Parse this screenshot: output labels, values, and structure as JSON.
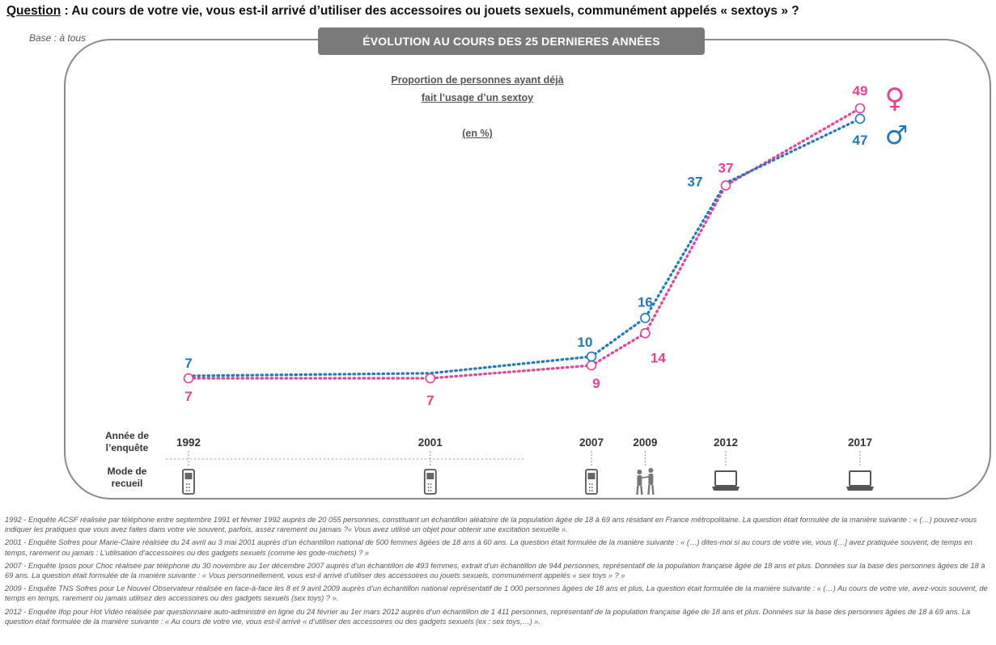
{
  "header": {
    "question_label": "Question",
    "question_text": " : Au cours de votre vie, vous est-il arrivé d’utiliser des accessoires ou jouets sexuels, communément appelés « sextoys » ?",
    "base": "Base : à tous",
    "banner": "ÉVOLUTION AU COURS DES 25 DERNIERES ANNÉES"
  },
  "chart_data": {
    "type": "line",
    "title_lines": [
      "Proportion de personnes ayant déjà",
      "fait l’usage d’un sextoy",
      "(en %)"
    ],
    "x": [
      1992,
      2001,
      2007,
      2009,
      2012,
      2017
    ],
    "series": [
      {
        "name": "Femmes",
        "symbol": "♀",
        "color": "#ec3e97",
        "values": [
          7,
          7,
          9,
          14,
          37,
          49
        ]
      },
      {
        "name": "Hommes",
        "symbol": "♂",
        "color": "#1f78c1",
        "values": [
          7,
          null,
          10,
          16,
          37,
          47
        ]
      }
    ],
    "line_style": "dotted",
    "grid": false
  },
  "axis": {
    "year_row_label": [
      "Année de",
      "l’enquête"
    ],
    "mode_row_label": [
      "Mode de",
      "recueil"
    ],
    "years": [
      "1992",
      "2001",
      "2007",
      "2009",
      "2012",
      "2017"
    ],
    "modes": [
      "phone-icon",
      "phone-icon",
      "phone-icon",
      "face-to-face-icon",
      "laptop-icon",
      "laptop-icon"
    ]
  },
  "footnotes": [
    "1992 - Enquête ACSF réalisée par téléphone entre septembre 1991 et février 1992 auprès de 20 055 personnes, constituant un échantillon aléatoire de la population âgée de 18 à 69 ans résidant en France métropolitaine. La question était formulée de la manière suivante : « (…) pouvez-vous indiquer les pratiques que vous avez faites dans votre vie souvent, parfois, assez rarement ou jamais ?« Vous avez utilisé un objet pour obtenir une excitation sexuelle ».",
    "2001 - Enquête Sofres pour Marie-Claire réalisée du 24 avril au 3 mai 2001 auprès d’un échantillon national de 500 femmes âgées de 18 ans à 60 ans. La question était formulée de la manière suivante : « (…) dites-moi si au cours de votre vie, vous l[…] avez pratiquée souvent, de temps en temps, rarement ou jamais : L’utilisation d’accessoires ou des gadgets sexuels (comme les gode-michets) ? »",
    "2007 - Enquête Ipsos pour Choc réalisée par téléphone du 30 novembre au 1er décembre 2007 auprès d’un échantillon de 493 femmes, extrait d’un échantillon de 944 personnes, représentatif de la population française âgée de 18 ans et plus. Données sur la base des personnes âgées de 18 à 69 ans. La question était formulée de la manière suivante : « Vous personnellement, vous est-il arrivé d’utiliser des accessoires ou jouets sexuels, communément appelés « sex toys » ? »",
    "2009 - Enquête TNS Sofres pour Le Nouvel Observateur réalisée en face-à-face les 8 et 9 avril 2009 auprès d’un échantillon national représentatif de 1 000 personnes âgées de 18 ans et plus. La question était formulée de la manière suivante : « (…) Au cours de votre vie, avez-vous souvent, de temps en temps, rarement ou jamais utilisez des accessoires ou des gadgets sexuels (sex toys) ? ».",
    "2012 - Enquête Ifop pour Hot Vidéo réalisée par questionnaire auto-administré en ligne du 24 février au 1er mars 2012 auprès d’un échantillon de 1 411 personnes, représentatif de la population française âgée de 18 ans et plus. Données sur la base des personnes âgées de 18 à 69 ans. La question était formulée de la manière suivante : « Au cours de votre vie, vous est-il arrivé « d’utiliser des accessoires ou des gadgets sexuels (ex : sex toys,…) »."
  ]
}
